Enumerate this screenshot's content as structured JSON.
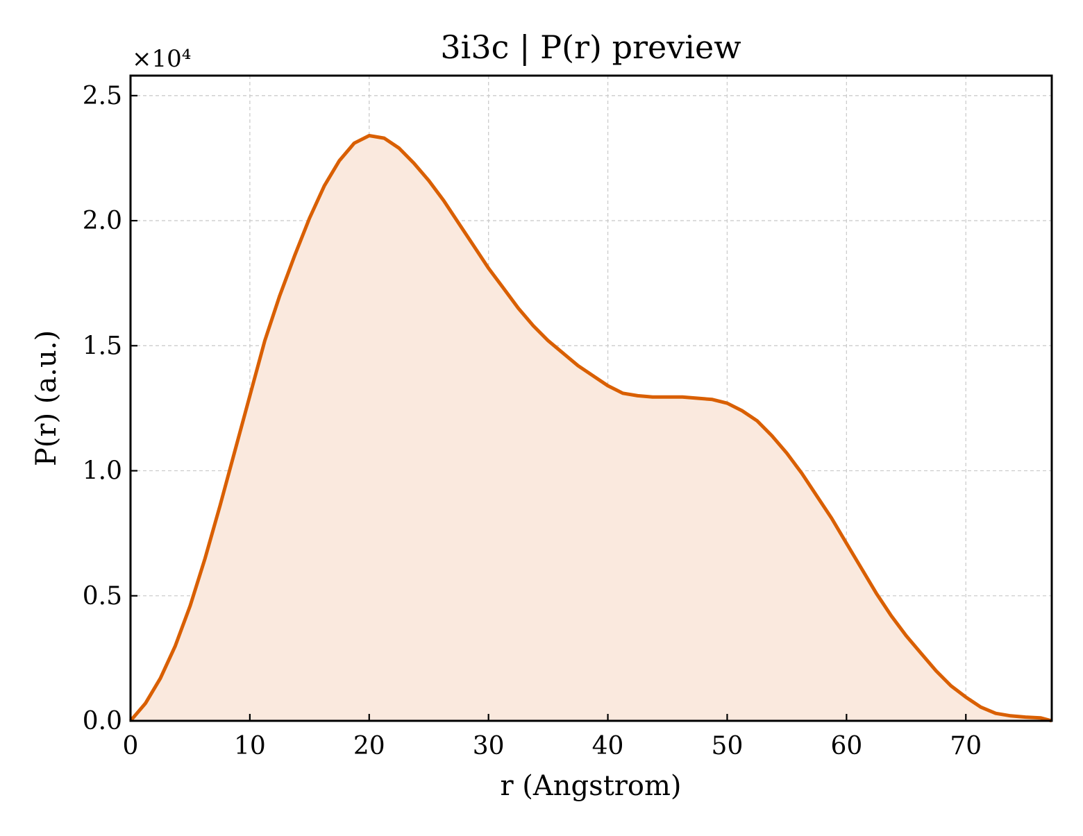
{
  "chart_data": {
    "type": "area",
    "title": "3i3c | P(r) preview",
    "xlabel": "r (Angstrom)",
    "ylabel": "P(r) (a.u.)",
    "y_offset_label": "×10⁴",
    "xlim": [
      0,
      77.2
    ],
    "ylim": [
      0,
      25800
    ],
    "xticks": [
      0,
      10,
      20,
      30,
      40,
      50,
      60,
      70
    ],
    "xtick_labels": [
      "0",
      "10",
      "20",
      "30",
      "40",
      "50",
      "60",
      "70"
    ],
    "yticks": [
      0,
      5000,
      10000,
      15000,
      20000,
      25000
    ],
    "ytick_labels": [
      "0.0",
      "0.5",
      "1.0",
      "1.5",
      "2.0",
      "2.5"
    ],
    "grid": true,
    "line_color": "#d95f02",
    "fill_color": "#fae9de",
    "series": [
      {
        "x": [
          0,
          1.25,
          2.5,
          3.75,
          5,
          6.25,
          7.5,
          8.75,
          10,
          11.25,
          12.5,
          13.75,
          15,
          16.25,
          17.5,
          18.75,
          20,
          21.25,
          22.5,
          23.75,
          25,
          26.25,
          27.5,
          28.75,
          30,
          31.25,
          32.5,
          33.75,
          35,
          36.25,
          37.5,
          38.75,
          40,
          41.25,
          42.5,
          43.75,
          45,
          46.25,
          47.5,
          48.75,
          50,
          51.25,
          52.5,
          53.75,
          55,
          56.25,
          57.5,
          58.75,
          60,
          61.25,
          62.5,
          63.75,
          65,
          66.25,
          67.5,
          68.75,
          70,
          71.25,
          72.5,
          73.75,
          75,
          76.25,
          77.2
        ],
        "y": [
          0,
          700,
          1700,
          3000,
          4600,
          6500,
          8600,
          10800,
          13000,
          15200,
          17000,
          18600,
          20100,
          21400,
          22400,
          23100,
          23400,
          23300,
          22900,
          22300,
          21600,
          20800,
          19900,
          19000,
          18100,
          17300,
          16500,
          15800,
          15200,
          14700,
          14200,
          13800,
          13400,
          13100,
          13000,
          12950,
          12950,
          12950,
          12900,
          12850,
          12700,
          12400,
          12000,
          11400,
          10700,
          9900,
          9000,
          8100,
          7100,
          6100,
          5100,
          4200,
          3400,
          2700,
          2000,
          1400,
          950,
          550,
          300,
          200,
          150,
          120,
          0
        ]
      }
    ]
  }
}
